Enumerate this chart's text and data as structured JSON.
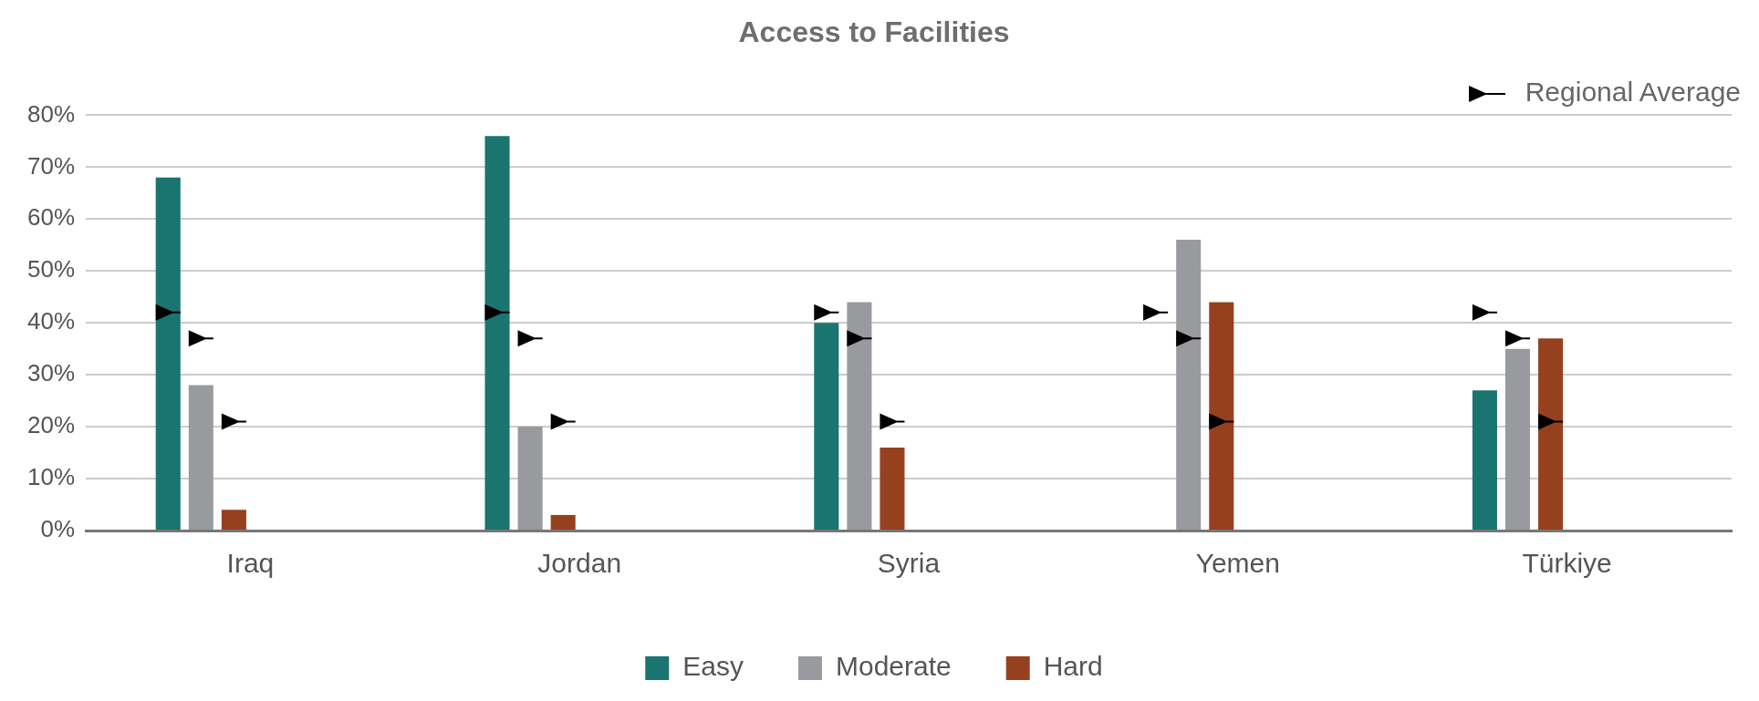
{
  "chart_data": {
    "type": "bar",
    "title": "Access to Facilities",
    "categories": [
      "Iraq",
      "Jordan",
      "Syria",
      "Yemen",
      "Türkiye"
    ],
    "series": [
      {
        "name": "Easy",
        "color": "#1a7470",
        "values": [
          68,
          76,
          40,
          0,
          27
        ]
      },
      {
        "name": "Moderate",
        "color": "#999a9e",
        "values": [
          28,
          20,
          44,
          56,
          35
        ]
      },
      {
        "name": "Hard",
        "color": "#96411e",
        "values": [
          4,
          3,
          16,
          44,
          37
        ]
      },
      {
        "name": "Regional Average",
        "type": "scatter",
        "color": "#000000",
        "marker": "triangle",
        "x": [
          "Iraq",
          "Jordan",
          "Syria",
          "Yemen",
          "Türkiye"
        ],
        "values": [
          42,
          42,
          42,
          42,
          42
        ]
      },
      {
        "type": "scatter",
        "color": "#000000",
        "marker": "triangle",
        "x": [
          "Iraq",
          "Jordan",
          "Syria",
          "Yemen",
          "Türkiye"
        ],
        "values": [
          37,
          37,
          37,
          37,
          37
        ]
      },
      {
        "type": "scatter",
        "color": "#000000",
        "marker": "triangle",
        "x": [
          "Iraq",
          "Jordan",
          "Syria",
          "Yemen",
          "Türkiye"
        ],
        "values": [
          21,
          21,
          21,
          21,
          21
        ]
      }
    ],
    "ylim": [
      0,
      80
    ],
    "yticks": [
      {
        "value": 0,
        "label": "0%"
      },
      {
        "value": 10,
        "label": "10%"
      },
      {
        "value": 20,
        "label": "20%"
      },
      {
        "value": 30,
        "label": "30%"
      },
      {
        "value": 40,
        "label": "40%"
      },
      {
        "value": 50,
        "label": "50%"
      },
      {
        "value": 60,
        "label": "60%"
      },
      {
        "value": 70,
        "label": "70%"
      },
      {
        "value": 80,
        "label": "80%"
      }
    ],
    "grid": "y",
    "legend": "bottom"
  }
}
